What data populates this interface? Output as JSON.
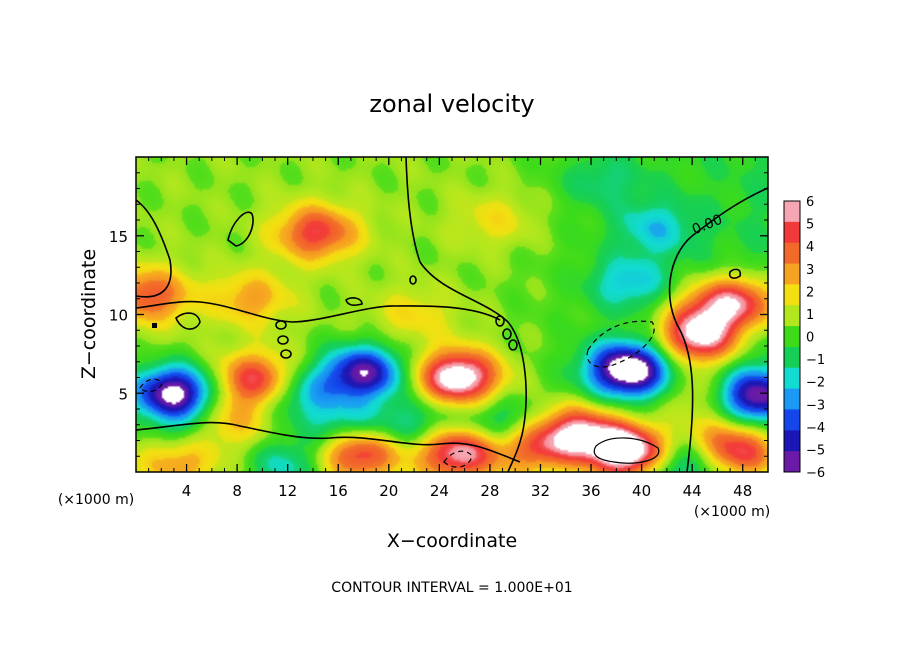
{
  "chart_data": {
    "type": "heatmap",
    "title": "zonal velocity",
    "xlabel": "X−coordinate",
    "ylabel": "Z−coordinate",
    "x_unit_label": "(×1000 m)",
    "z_unit_label": "(×1000 m)",
    "xlim": [
      0,
      50
    ],
    "ylim": [
      0,
      20
    ],
    "x_ticks": [
      "4",
      "8",
      "12",
      "16",
      "20",
      "24",
      "28",
      "32",
      "36",
      "40",
      "44",
      "48"
    ],
    "y_ticks": [
      "5",
      "10",
      "15"
    ],
    "colorbar_ticks": [
      "6",
      "5",
      "4",
      "3",
      "2",
      "1",
      "0",
      "−1",
      "−2",
      "−3",
      "−4",
      "−5",
      "−6"
    ],
    "colorbar_colors": [
      "#f6a6b2",
      "#f23a3a",
      "#f26a2a",
      "#f6a321",
      "#f4e011",
      "#b3e71d",
      "#3ddb1a",
      "#15cf57",
      "#12dcd2",
      "#1a9af3",
      "#1446ec",
      "#1c17b4",
      "#6a1aa6"
    ],
    "contour_label": "0.00",
    "contour_interval_text": "CONTOUR INTERVAL = 1.000E+01",
    "features": [
      {
        "kind": "jet",
        "x": 14.3,
        "z": 15.2,
        "value": 4.5
      },
      {
        "kind": "jet",
        "x": 9.0,
        "z": 11.0,
        "value": 2.5
      },
      {
        "kind": "jet",
        "x": 1.0,
        "z": 11.2,
        "value": 4.0
      },
      {
        "kind": "jet",
        "x": 48.0,
        "z": 10.8,
        "value": 4.5
      },
      {
        "kind": "jet",
        "x": 45.3,
        "z": 10.5,
        "value": 3.0
      },
      {
        "kind": "jet",
        "x": 44.5,
        "z": 8.5,
        "value": 6.5
      },
      {
        "kind": "jet",
        "x": 25.5,
        "z": 6.0,
        "value": 7.0
      },
      {
        "kind": "jet",
        "x": 9.5,
        "z": 5.8,
        "value": 5.0
      },
      {
        "kind": "jet",
        "x": 22.0,
        "z": 10.0,
        "value": 1.5
      },
      {
        "kind": "jet",
        "x": 35.0,
        "z": 2.5,
        "value": 5.5
      },
      {
        "kind": "jet",
        "x": 17.5,
        "z": 1.3,
        "value": 5.5
      },
      {
        "kind": "jet",
        "x": 25.5,
        "z": 1.3,
        "value": 6.0
      },
      {
        "kind": "jet",
        "x": 39.0,
        "z": 1.3,
        "value": 8.0
      },
      {
        "kind": "jet",
        "x": 48.0,
        "z": 1.2,
        "value": 5.0
      },
      {
        "kind": "jet",
        "x": 3.5,
        "z": 1.0,
        "value": 4.0
      },
      {
        "kind": "jet",
        "x": 31.5,
        "z": 1.5,
        "value": 3.5
      },
      {
        "kind": "jet",
        "x": 7.0,
        "z": 3.0,
        "value": 2.5
      },
      {
        "kind": "jet",
        "x": 44.5,
        "z": 5.0,
        "value": 2.0
      },
      {
        "kind": "jet",
        "x": 46.0,
        "z": 2.5,
        "value": 2.0
      },
      {
        "kind": "jet",
        "x": 28.5,
        "z": 16.0,
        "value": 1.5
      },
      {
        "kind": "jet",
        "x": 39.0,
        "z": 6.5,
        "value": -8.0
      },
      {
        "kind": "jet",
        "x": 3.0,
        "z": 5.0,
        "value": -7.5
      },
      {
        "kind": "jet",
        "x": 18.0,
        "z": 6.3,
        "value": -6.5
      },
      {
        "kind": "jet",
        "x": 49.0,
        "z": 4.8,
        "value": -6.0
      },
      {
        "kind": "jet",
        "x": 39.0,
        "z": 12.0,
        "value": -2.5
      },
      {
        "kind": "jet",
        "x": 41.0,
        "z": 15.5,
        "value": -2.2
      },
      {
        "kind": "jet",
        "x": 37.0,
        "z": 18.5,
        "value": -1.5
      },
      {
        "kind": "jet",
        "x": 13.0,
        "z": 5.0,
        "value": -3.0
      },
      {
        "kind": "jet",
        "x": 16.5,
        "z": 2.8,
        "value": -3.0
      },
      {
        "kind": "jet",
        "x": 22.0,
        "z": 3.0,
        "value": -2.5
      },
      {
        "kind": "jet",
        "x": 4.0,
        "z": 2.0,
        "value": -3.0
      },
      {
        "kind": "jet",
        "x": 28.5,
        "z": 3.0,
        "value": -2.5
      },
      {
        "kind": "jet",
        "x": 12.0,
        "z": 0.5,
        "value": -2.5
      },
      {
        "kind": "jet",
        "x": 43.0,
        "z": 0.5,
        "value": -2.5
      }
    ]
  }
}
